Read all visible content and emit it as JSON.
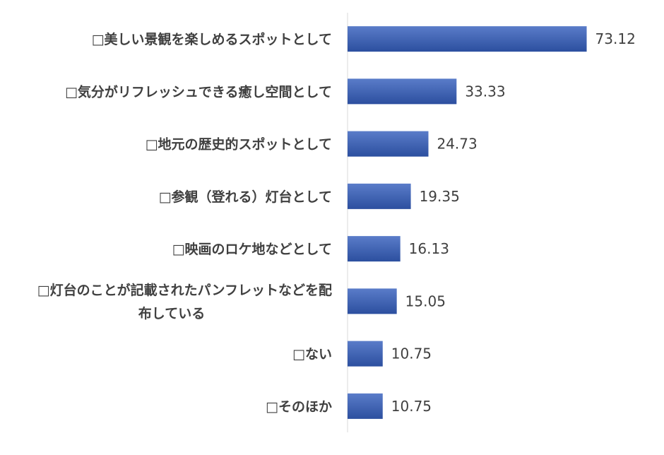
{
  "chart_data": {
    "type": "bar",
    "orientation": "horizontal",
    "categories": [
      [
        "□美しい景観を楽しめるスポットとして"
      ],
      [
        "□気分がリフレッシュできる癒し空間として"
      ],
      [
        "□地元の歴史的スポットとして"
      ],
      [
        "□参観（登れる）灯台として"
      ],
      [
        "□映画のロケ地などとして"
      ],
      [
        "□灯台のことが記載されたパンフレットなどを配",
        "布している"
      ],
      [
        "□ない"
      ],
      [
        "□そのほか"
      ]
    ],
    "values": [
      73.12,
      33.33,
      24.73,
      19.35,
      16.13,
      15.05,
      10.75,
      10.75
    ],
    "value_labels": [
      "73.12",
      "33.33",
      "24.73",
      "19.35",
      "16.13",
      "15.05",
      "10.75",
      "10.75"
    ],
    "xlim": [
      0,
      100
    ],
    "grid": false,
    "legend": "none",
    "colors": {
      "bar_top": "#5a7cc9",
      "bar_bottom": "#2c4f9f",
      "axis": "#d9d9d9",
      "text": "#404040"
    }
  }
}
